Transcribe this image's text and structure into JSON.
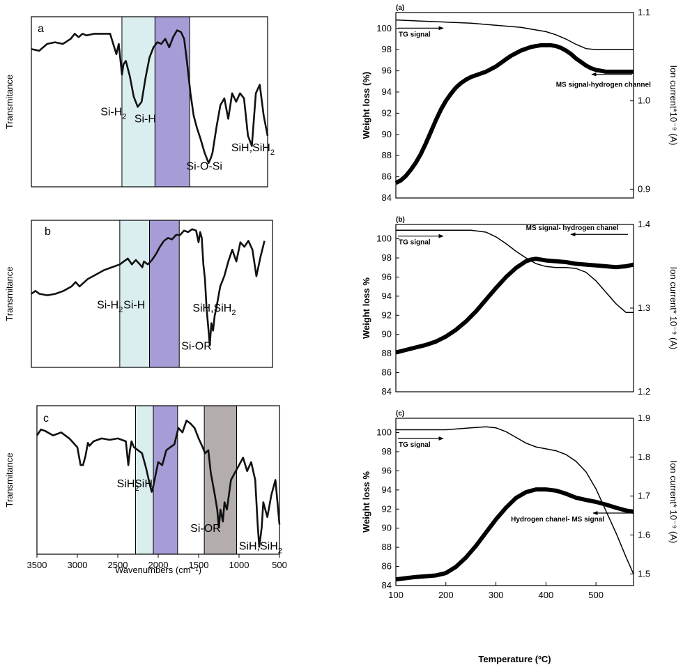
{
  "chart_data": [
    {
      "panel": "a",
      "type": "line",
      "ylabel": "Transmitance",
      "xlabel": "",
      "xlim": [
        3500,
        500
      ],
      "bands": [
        {
          "from": 2350,
          "to": 1930,
          "color": "#daeef0"
        },
        {
          "from": 1930,
          "to": 1490,
          "color": "#a79dd6"
        }
      ],
      "annotations": [
        {
          "text": "Si-H",
          "sub": "2",
          "x": 2250,
          "y": 0.42
        },
        {
          "text": "Si-H",
          "sub": "",
          "x": 1820,
          "y": 0.38
        },
        {
          "text": "Si-O-Si",
          "sub": "",
          "x": 1160,
          "y": 0.1
        },
        {
          "text": "SiH,SiH",
          "sub": "2",
          "x": 590,
          "y": 0.21
        }
      ],
      "x": [
        3500,
        3400,
        3300,
        3200,
        3100,
        3000,
        2950,
        2900,
        2850,
        2800,
        2700,
        2600,
        2500,
        2420,
        2390,
        2370,
        2350,
        2330,
        2300,
        2250,
        2200,
        2150,
        2100,
        2050,
        2000,
        1950,
        1900,
        1850,
        1800,
        1750,
        1700,
        1650,
        1600,
        1560,
        1520,
        1480,
        1440,
        1400,
        1350,
        1300,
        1250,
        1220,
        1200,
        1150,
        1100,
        1050,
        1000,
        950,
        900,
        850,
        800,
        750,
        700,
        650,
        600,
        550,
        500
      ],
      "y": [
        0.81,
        0.8,
        0.84,
        0.85,
        0.84,
        0.87,
        0.9,
        0.88,
        0.9,
        0.89,
        0.9,
        0.9,
        0.9,
        0.78,
        0.84,
        0.75,
        0.66,
        0.72,
        0.74,
        0.65,
        0.53,
        0.47,
        0.5,
        0.64,
        0.76,
        0.82,
        0.85,
        0.84,
        0.87,
        0.82,
        0.88,
        0.92,
        0.91,
        0.87,
        0.72,
        0.55,
        0.42,
        0.35,
        0.28,
        0.2,
        0.14,
        0.17,
        0.2,
        0.35,
        0.48,
        0.52,
        0.4,
        0.55,
        0.5,
        0.55,
        0.52,
        0.3,
        0.24,
        0.55,
        0.6,
        0.42,
        0.3
      ]
    },
    {
      "panel": "b",
      "type": "line",
      "ylabel": "Transmitance",
      "xlabel": "",
      "xlim": [
        3500,
        500
      ],
      "bands": [
        {
          "from": 2400,
          "to": 2030,
          "color": "#daeef0"
        },
        {
          "from": 2030,
          "to": 1660,
          "color": "#a79dd6"
        }
      ],
      "annotations": [
        {
          "text": "Si-H",
          "sub": "2",
          "x": 2320,
          "y": 0.4
        },
        {
          "text": "Si-H",
          "sub": "",
          "x": 1990,
          "y": 0.4
        },
        {
          "text": "Si-OR",
          "sub": "",
          "x": 1270,
          "y": 0.12
        },
        {
          "text": "SiH,SiH",
          "sub": "2",
          "x": 1130,
          "y": 0.38
        }
      ],
      "x": [
        3500,
        3450,
        3400,
        3300,
        3200,
        3100,
        3000,
        2950,
        2900,
        2800,
        2700,
        2600,
        2500,
        2400,
        2350,
        2300,
        2250,
        2200,
        2150,
        2120,
        2100,
        2050,
        2000,
        1950,
        1900,
        1850,
        1800,
        1750,
        1700,
        1650,
        1600,
        1550,
        1500,
        1450,
        1420,
        1400,
        1380,
        1360,
        1340,
        1320,
        1300,
        1280,
        1260,
        1240,
        1220,
        1200,
        1150,
        1100,
        1050,
        1000,
        950,
        900,
        850,
        800,
        750,
        700,
        650,
        600
      ],
      "y": [
        0.5,
        0.52,
        0.5,
        0.49,
        0.5,
        0.52,
        0.55,
        0.58,
        0.55,
        0.6,
        0.63,
        0.66,
        0.68,
        0.7,
        0.72,
        0.74,
        0.7,
        0.73,
        0.7,
        0.68,
        0.72,
        0.7,
        0.73,
        0.77,
        0.82,
        0.86,
        0.88,
        0.87,
        0.9,
        0.9,
        0.93,
        0.92,
        0.94,
        0.93,
        0.85,
        0.92,
        0.88,
        0.7,
        0.6,
        0.4,
        0.28,
        0.15,
        0.3,
        0.25,
        0.35,
        0.4,
        0.55,
        0.62,
        0.72,
        0.8,
        0.72,
        0.85,
        0.82,
        0.86,
        0.8,
        0.62,
        0.75,
        0.86
      ]
    },
    {
      "panel": "c",
      "type": "line",
      "ylabel": "Transmitance",
      "xlabel": "Wavenumbers (cm⁻¹)",
      "xlim": [
        3500,
        500
      ],
      "xticks": [
        3500,
        3000,
        2500,
        2000,
        1500,
        1000,
        500
      ],
      "bands": [
        {
          "from": 2280,
          "to": 2060,
          "color": "#daeef0"
        },
        {
          "from": 2060,
          "to": 1760,
          "color": "#a79dd6"
        },
        {
          "from": 1430,
          "to": 1030,
          "color": "#b3adab"
        }
      ],
      "annotations": [
        {
          "text": "SiH",
          "sub": "2",
          "x": 2150,
          "y": 0.45
        },
        {
          "text": "SiH",
          "sub": "",
          "x": 1930,
          "y": 0.45
        },
        {
          "text": "Si-OR",
          "sub": "",
          "x": 1240,
          "y": 0.15
        },
        {
          "text": "SiH,SiH",
          "sub": "2",
          "x": 640,
          "y": 0.03
        }
      ],
      "x": [
        3500,
        3450,
        3400,
        3300,
        3200,
        3100,
        3000,
        2960,
        2930,
        2900,
        2870,
        2850,
        2800,
        2700,
        2600,
        2500,
        2400,
        2370,
        2350,
        2330,
        2300,
        2200,
        2150,
        2100,
        2080,
        2060,
        2000,
        1950,
        1900,
        1850,
        1800,
        1750,
        1700,
        1650,
        1600,
        1550,
        1500,
        1450,
        1420,
        1380,
        1350,
        1300,
        1270,
        1250,
        1230,
        1200,
        1180,
        1150,
        1100,
        1050,
        1000,
        950,
        900,
        850,
        800,
        770,
        750,
        720,
        700,
        650,
        600,
        550,
        500
      ],
      "y": [
        0.8,
        0.84,
        0.83,
        0.8,
        0.82,
        0.78,
        0.72,
        0.6,
        0.6,
        0.66,
        0.75,
        0.73,
        0.76,
        0.78,
        0.77,
        0.78,
        0.76,
        0.6,
        0.7,
        0.76,
        0.72,
        0.68,
        0.58,
        0.46,
        0.42,
        0.46,
        0.62,
        0.6,
        0.7,
        0.72,
        0.74,
        0.85,
        0.82,
        0.9,
        0.88,
        0.85,
        0.78,
        0.72,
        0.68,
        0.7,
        0.55,
        0.4,
        0.3,
        0.18,
        0.3,
        0.22,
        0.35,
        0.3,
        0.5,
        0.55,
        0.6,
        0.65,
        0.56,
        0.62,
        0.5,
        0.2,
        0.05,
        0.18,
        0.35,
        0.25,
        0.4,
        0.5,
        0.2
      ]
    },
    {
      "panel": "(a)",
      "type": "line",
      "ylabel": "Weight loss (%)",
      "y2label": "Ion current*10⁻⁹ (A)",
      "xlim": [
        100,
        575
      ],
      "ylim": [
        84,
        101.5
      ],
      "y2lim": [
        0.89,
        1.1
      ],
      "yticks": [
        84,
        86,
        88,
        90,
        92,
        94,
        96,
        98,
        100
      ],
      "y2ticks": [
        0.9,
        1.0,
        1.1
      ],
      "y2ticklabels": [
        "0.9",
        "1.0",
        "1.1"
      ],
      "annotations": [
        {
          "text": "TG signal",
          "x": 103,
          "y": 99.5,
          "arrow": "right"
        },
        {
          "text": "MS signal-hydrogen channel",
          "x": 420,
          "y": 94.5,
          "arrow": "left"
        }
      ],
      "series": [
        {
          "name": "TG signal",
          "x": [
            100,
            150,
            200,
            250,
            300,
            350,
            400,
            420,
            440,
            460,
            480,
            500,
            520,
            540,
            560,
            575
          ],
          "y": [
            100.8,
            100.7,
            100.6,
            100.5,
            100.3,
            100.1,
            99.7,
            99.4,
            99.0,
            98.5,
            98.1,
            98.0,
            98.0,
            98.0,
            98.0,
            98.0
          ]
        },
        {
          "name": "MS signal-hydrogen channel",
          "x": [
            100,
            110,
            120,
            130,
            140,
            150,
            160,
            170,
            180,
            190,
            200,
            210,
            220,
            230,
            240,
            250,
            260,
            270,
            280,
            290,
            300,
            310,
            320,
            330,
            340,
            350,
            360,
            370,
            380,
            390,
            400,
            410,
            420,
            430,
            440,
            450,
            460,
            470,
            480,
            490,
            500,
            510,
            520,
            540,
            560,
            575
          ],
          "y": [
            0.907,
            0.91,
            0.915,
            0.922,
            0.93,
            0.94,
            0.952,
            0.965,
            0.978,
            0.99,
            1.0,
            1.008,
            1.015,
            1.02,
            1.024,
            1.027,
            1.029,
            1.031,
            1.033,
            1.036,
            1.039,
            1.043,
            1.047,
            1.051,
            1.054,
            1.057,
            1.059,
            1.061,
            1.062,
            1.063,
            1.063,
            1.063,
            1.062,
            1.06,
            1.057,
            1.053,
            1.048,
            1.044,
            1.04,
            1.037,
            1.035,
            1.034,
            1.033,
            1.033,
            1.033,
            1.033
          ]
        }
      ]
    },
    {
      "panel": "(b)",
      "type": "line",
      "ylabel": "Weight loss %",
      "y2label": "Ion current* 10⁻⁹ (A)",
      "xlim": [
        100,
        575
      ],
      "ylim": [
        84,
        101.5
      ],
      "y2lim": [
        1.2,
        1.4
      ],
      "yticks": [
        84,
        86,
        88,
        90,
        92,
        94,
        96,
        98,
        100
      ],
      "y2ticks": [
        1.2,
        1.3,
        1.4
      ],
      "y2ticklabels": [
        "1.2",
        "1.3",
        "1.4"
      ],
      "annotations": [
        {
          "text": "TG signal",
          "x": 103,
          "y": 99.7,
          "arrow": "right"
        },
        {
          "text": "MS signal- hydrogen chanel",
          "x": 360,
          "y": 100.9,
          "arrow": "left"
        }
      ],
      "series": [
        {
          "name": "TG signal",
          "x": [
            100,
            150,
            200,
            250,
            280,
            300,
            320,
            340,
            360,
            380,
            400,
            420,
            440,
            460,
            480,
            500,
            520,
            540,
            560,
            575
          ],
          "y": [
            100.9,
            100.9,
            100.9,
            100.9,
            100.7,
            100.2,
            99.5,
            98.7,
            98.0,
            97.4,
            97.1,
            97.0,
            97.0,
            96.9,
            96.5,
            95.6,
            94.4,
            93.2,
            92.3,
            92.3
          ]
        },
        {
          "name": "MS signal- hydrogen chanel",
          "x": [
            100,
            120,
            140,
            160,
            180,
            200,
            220,
            240,
            260,
            280,
            300,
            320,
            340,
            360,
            370,
            380,
            390,
            400,
            420,
            440,
            460,
            480,
            500,
            520,
            540,
            560,
            575
          ],
          "y": [
            1.247,
            1.25,
            1.253,
            1.256,
            1.26,
            1.266,
            1.274,
            1.284,
            1.296,
            1.31,
            1.324,
            1.337,
            1.348,
            1.356,
            1.358,
            1.359,
            1.358,
            1.357,
            1.356,
            1.355,
            1.353,
            1.352,
            1.351,
            1.35,
            1.349,
            1.35,
            1.352
          ]
        }
      ]
    },
    {
      "panel": "(c)",
      "type": "line",
      "ylabel": "Weight loss %",
      "y2label": "Ion current* 10⁻⁹ (A)",
      "xlabel": "Temperature (ºC)",
      "xlim": [
        100,
        575
      ],
      "ylim": [
        84,
        101.5
      ],
      "y2lim": [
        1.47,
        1.9
      ],
      "xticks": [
        100,
        200,
        300,
        400,
        500
      ],
      "yticks": [
        84,
        86,
        88,
        90,
        92,
        94,
        96,
        98,
        100
      ],
      "y2ticks": [
        1.5,
        1.6,
        1.7,
        1.8,
        1.9
      ],
      "y2ticklabels": [
        "1.5",
        "1.6",
        "1.7",
        "1.8",
        "1.9"
      ],
      "annotations": [
        {
          "text": "TG signal",
          "x": 103,
          "y": 98.8,
          "arrow": "right"
        },
        {
          "text": "Hydrogen chanel- MS signal",
          "x": 330,
          "y": 91.0,
          "arrow": "left"
        }
      ],
      "series": [
        {
          "name": "TG signal",
          "x": [
            100,
            150,
            200,
            250,
            280,
            300,
            320,
            340,
            360,
            380,
            400,
            420,
            440,
            460,
            480,
            500,
            520,
            540,
            560,
            575
          ],
          "y": [
            100.3,
            100.3,
            100.3,
            100.5,
            100.6,
            100.5,
            100.1,
            99.5,
            98.9,
            98.5,
            98.3,
            98.1,
            97.7,
            97.0,
            95.9,
            94.1,
            91.8,
            89.5,
            87.0,
            85.2
          ]
        },
        {
          "name": "Hydrogen chanel- MS signal",
          "x": [
            100,
            120,
            140,
            160,
            180,
            200,
            220,
            240,
            260,
            280,
            300,
            320,
            340,
            360,
            380,
            400,
            420,
            440,
            460,
            480,
            500,
            520,
            540,
            560,
            575
          ],
          "y": [
            1.486,
            1.489,
            1.492,
            1.494,
            1.496,
            1.502,
            1.518,
            1.542,
            1.572,
            1.606,
            1.64,
            1.67,
            1.695,
            1.71,
            1.717,
            1.717,
            1.714,
            1.706,
            1.696,
            1.69,
            1.685,
            1.678,
            1.67,
            1.663,
            1.66
          ]
        }
      ]
    }
  ]
}
